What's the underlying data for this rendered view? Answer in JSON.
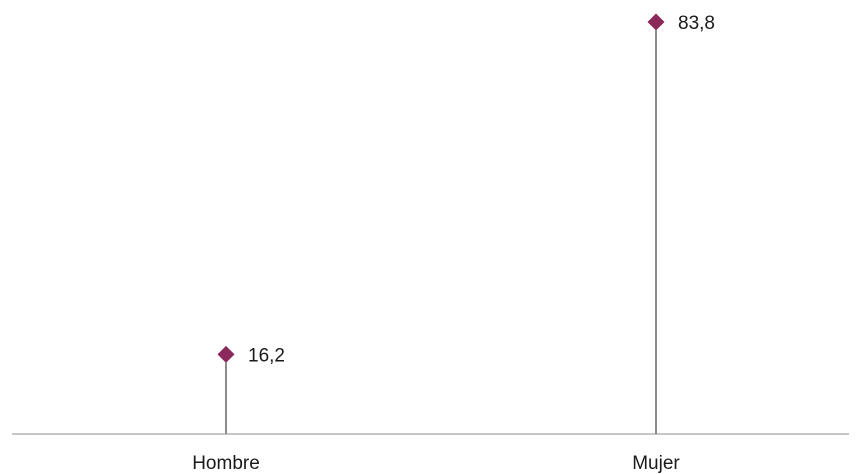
{
  "chart_data": {
    "type": "scatter",
    "style": "lollipop",
    "categories": [
      "Hombre",
      "Mujer"
    ],
    "values": [
      16.2,
      83.8
    ],
    "value_labels": [
      "16,2",
      "83,8"
    ],
    "title": "",
    "xlabel": "",
    "ylabel": "",
    "ylim": [
      0,
      85
    ],
    "grid": false,
    "legend": "none",
    "marker": "diamond",
    "colors": {
      "marker": "#8b2a5a",
      "stem": "#1a1a1a",
      "axis": "#8c8c8c",
      "text": "#1a1a1a"
    }
  }
}
